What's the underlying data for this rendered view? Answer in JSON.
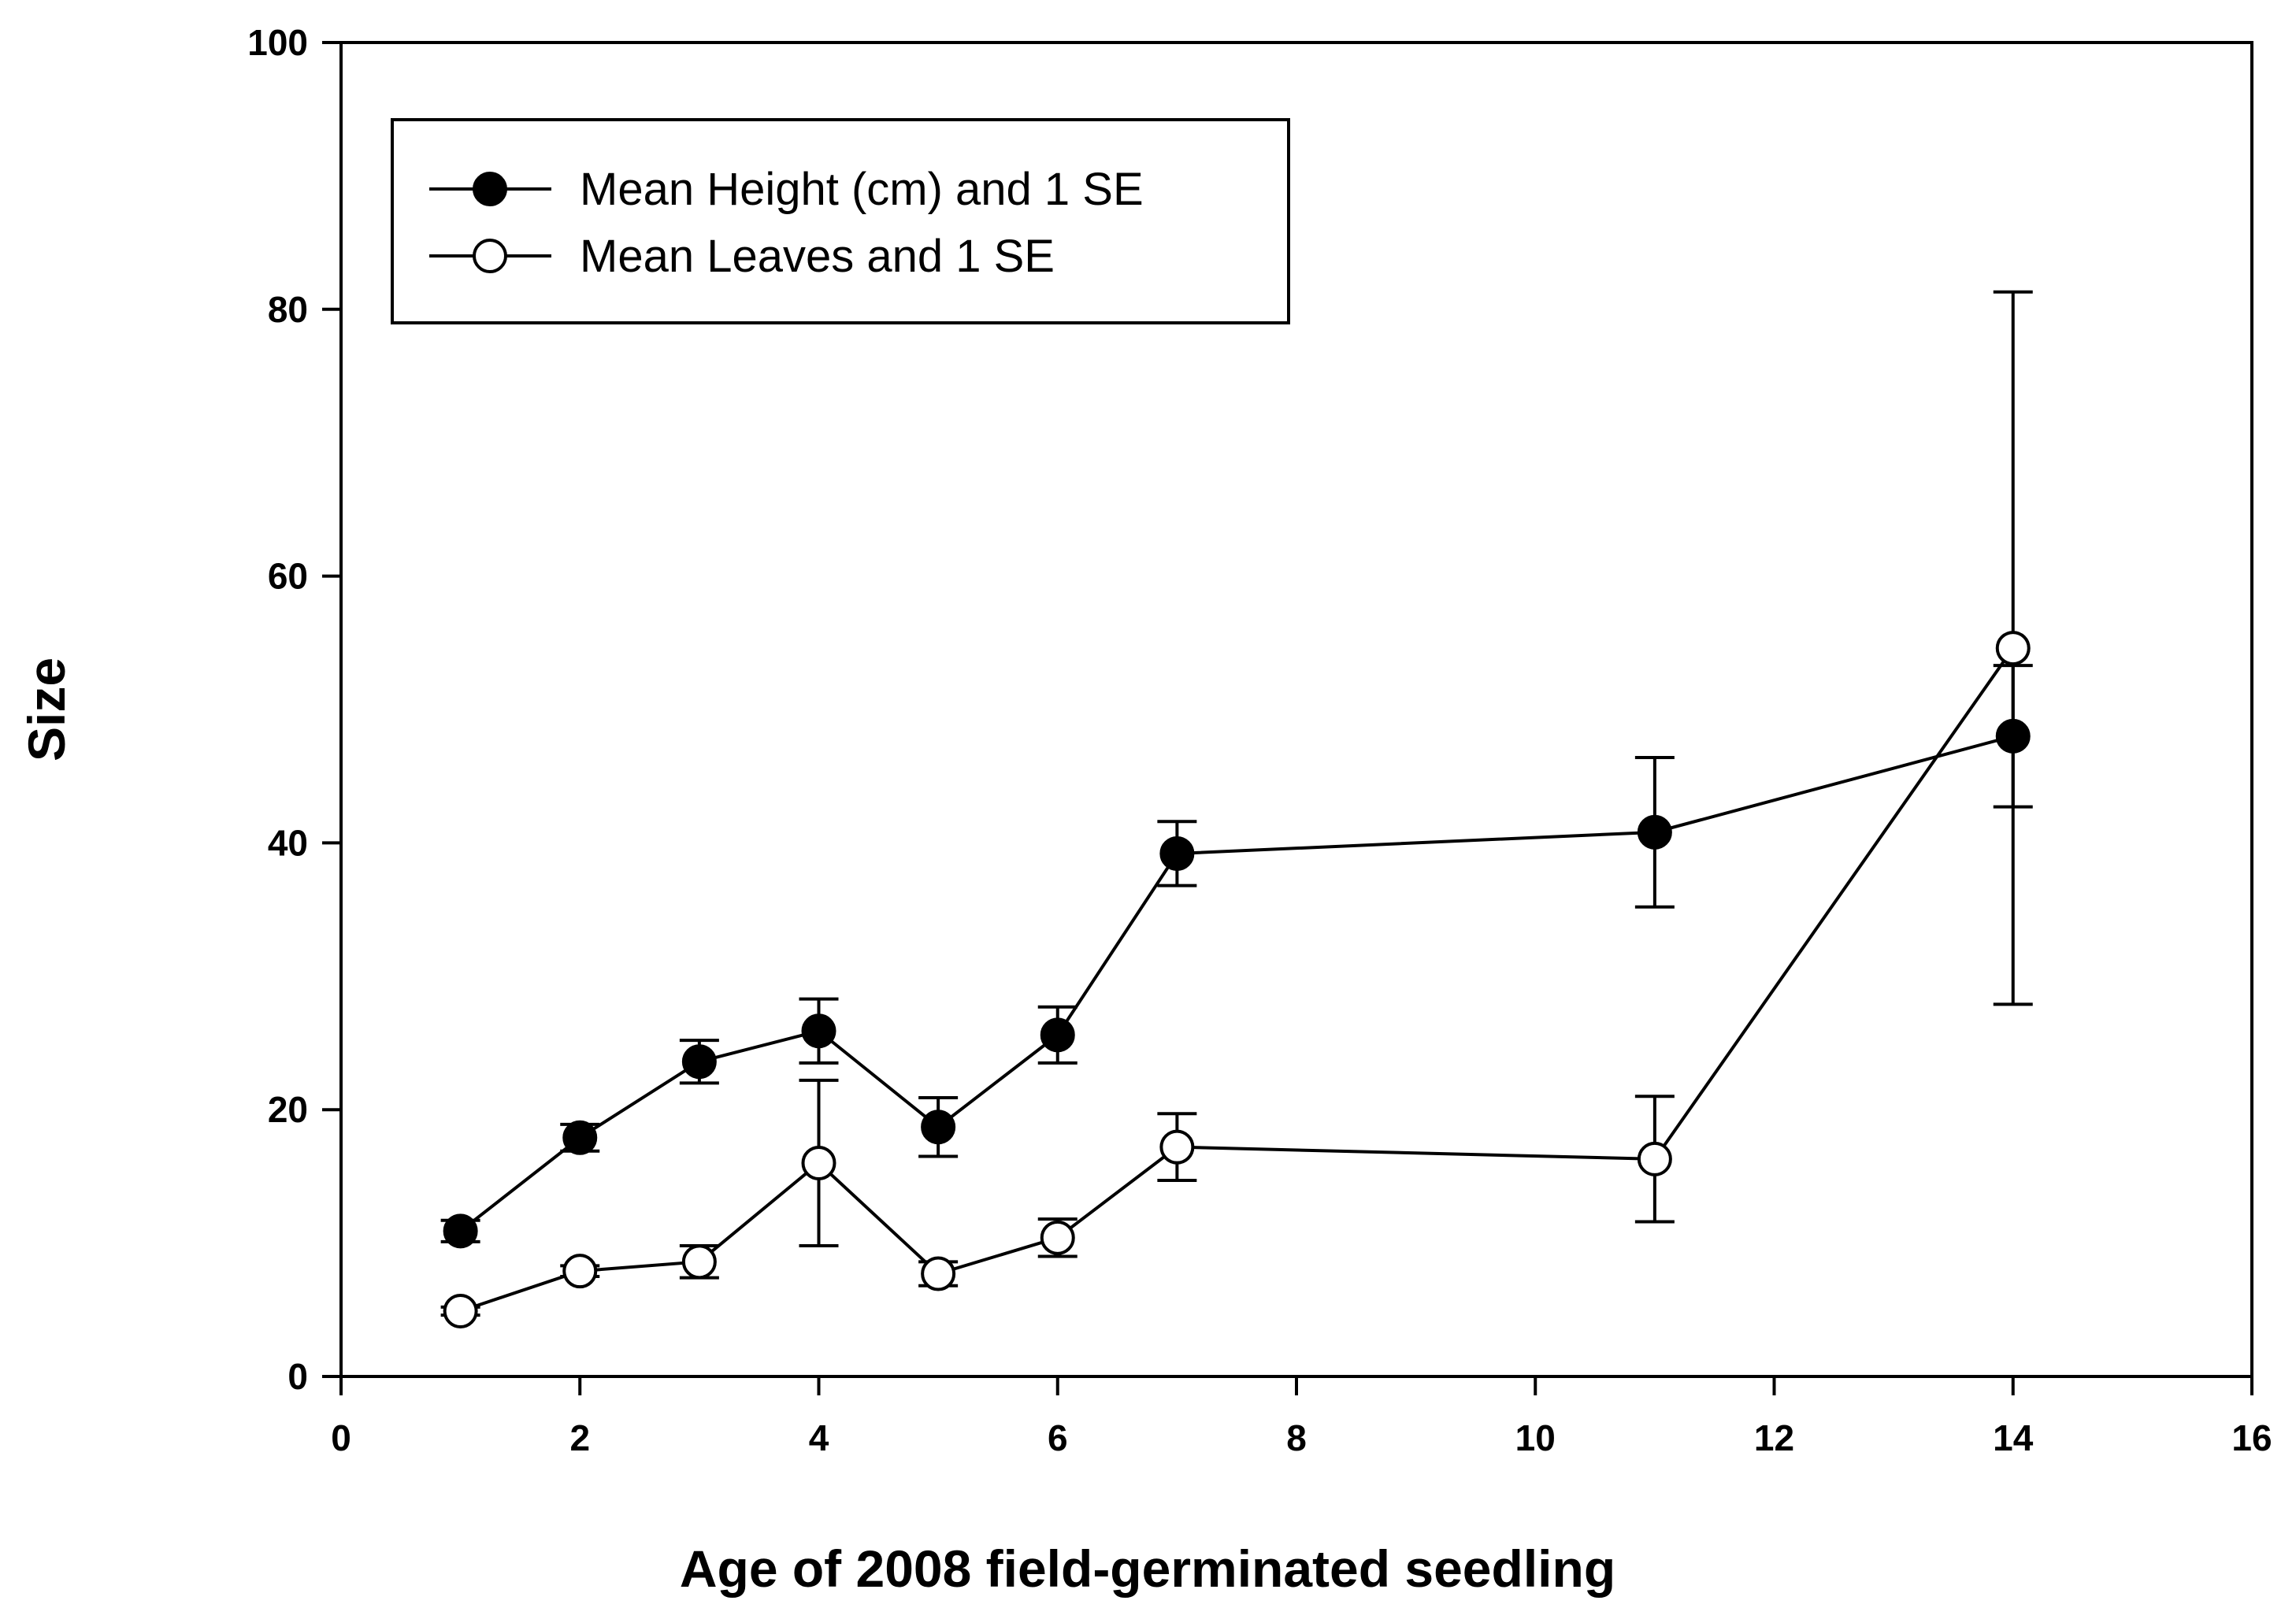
{
  "chart_data": {
    "type": "line",
    "title": "",
    "xlabel": "Age of 2008 field-germinated seedling",
    "ylabel": "Size",
    "xlim": [
      0,
      16
    ],
    "ylim": [
      0,
      100
    ],
    "xticks": [
      0,
      2,
      4,
      6,
      8,
      10,
      12,
      14,
      16
    ],
    "yticks": [
      0,
      20,
      40,
      60,
      80,
      100
    ],
    "xtick_labels": [
      "0",
      "2",
      "4",
      "6",
      "8",
      "10",
      "12",
      "14",
      "16"
    ],
    "ytick_labels": [
      "0",
      "20",
      "40",
      "60",
      "80",
      "100"
    ],
    "grid": false,
    "legend_position": "top-left",
    "series": [
      {
        "name": "Mean Height (cm) and 1 SE",
        "marker": "filled-circle",
        "color": "#000000",
        "x": [
          1,
          2,
          3,
          4,
          5,
          6,
          7,
          11,
          14
        ],
        "y": [
          10.9,
          17.9,
          23.6,
          25.9,
          18.7,
          25.6,
          39.2,
          40.8,
          48.0
        ],
        "se": [
          0.8,
          1.0,
          1.6,
          2.4,
          2.2,
          2.1,
          2.4,
          5.6,
          5.3
        ]
      },
      {
        "name": "Mean Leaves and 1 SE",
        "marker": "open-circle",
        "color": "#000000",
        "x": [
          1,
          2,
          3,
          4,
          5,
          6,
          7,
          11,
          14
        ],
        "y": [
          4.9,
          7.9,
          8.6,
          16.0,
          7.7,
          10.4,
          17.2,
          16.3,
          54.6
        ],
        "se": [
          0.3,
          0.4,
          1.2,
          6.2,
          0.9,
          1.4,
          2.5,
          4.7,
          26.7
        ]
      }
    ]
  }
}
